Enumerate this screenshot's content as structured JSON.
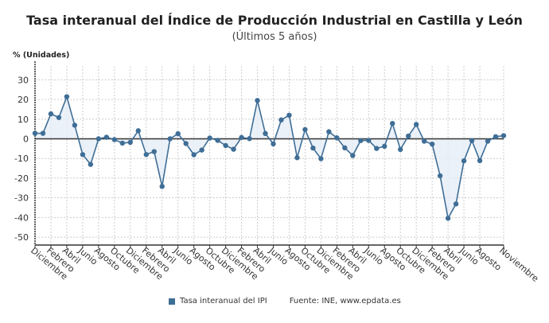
{
  "title": "Tasa interanual del Índice de Producción Industrial en Castilla y León",
  "subtitle": "(Últimos 5 años)",
  "legend_label": "Tasa interanual del IPI",
  "source": "Fuente: INE, www.epdata.es",
  "chart_data": {
    "type": "line",
    "title": "Tasa interanual del Índice de Producción Industrial en Castilla y León",
    "subtitle": "(Últimos 5 años)",
    "ylabel": "% (Unidades)",
    "xlabel": "",
    "ylim": [
      -54,
      37
    ],
    "yticks": [
      30,
      20,
      10,
      0,
      -10,
      -20,
      -30,
      -40,
      -50
    ],
    "grid": true,
    "legend": "bottom",
    "area_fill_to_zero": true,
    "colors": {
      "line": "#3f6e96",
      "fill": "#e6eef6",
      "zero": "#333333",
      "grid": "#cccccc"
    },
    "x_tick_labels": [
      {
        "index": 0,
        "label": "Diciembre"
      },
      {
        "index": 2,
        "label": "Febrero"
      },
      {
        "index": 4,
        "label": "Abril"
      },
      {
        "index": 6,
        "label": "Junio"
      },
      {
        "index": 8,
        "label": "Agosto"
      },
      {
        "index": 10,
        "label": "Octubre"
      },
      {
        "index": 12,
        "label": "Diciembre"
      },
      {
        "index": 14,
        "label": "Febrero"
      },
      {
        "index": 16,
        "label": "Abril"
      },
      {
        "index": 18,
        "label": "Junio"
      },
      {
        "index": 20,
        "label": "Agosto"
      },
      {
        "index": 22,
        "label": "Octubre"
      },
      {
        "index": 24,
        "label": "Diciembre"
      },
      {
        "index": 26,
        "label": "Febrero"
      },
      {
        "index": 28,
        "label": "Abril"
      },
      {
        "index": 30,
        "label": "Junio"
      },
      {
        "index": 32,
        "label": "Agosto"
      },
      {
        "index": 34,
        "label": "Octubre"
      },
      {
        "index": 36,
        "label": "Diciembre"
      },
      {
        "index": 38,
        "label": "Febrero"
      },
      {
        "index": 40,
        "label": "Abril"
      },
      {
        "index": 42,
        "label": "Junio"
      },
      {
        "index": 44,
        "label": "Agosto"
      },
      {
        "index": 46,
        "label": "Octubre"
      },
      {
        "index": 48,
        "label": "Diciembre"
      },
      {
        "index": 50,
        "label": "Febrero"
      },
      {
        "index": 52,
        "label": "Abril"
      },
      {
        "index": 54,
        "label": "Junio"
      },
      {
        "index": 56,
        "label": "Agosto"
      },
      {
        "index": 59,
        "label": "Noviembre"
      }
    ],
    "series": [
      {
        "name": "Tasa interanual del IPI",
        "values": [
          2.8,
          2.8,
          12.7,
          10.8,
          21.4,
          6.9,
          -8.0,
          -13.0,
          0.0,
          0.8,
          -0.4,
          -2.2,
          -1.8,
          4.1,
          -8.0,
          -6.5,
          -24.2,
          0.0,
          2.6,
          -2.4,
          -8.1,
          -5.7,
          0.4,
          -0.8,
          -3.4,
          -5.3,
          0.7,
          0.1,
          19.5,
          2.7,
          -2.6,
          9.6,
          12.0,
          -9.6,
          4.7,
          -4.7,
          -10.1,
          3.6,
          0.5,
          -4.6,
          -8.5,
          -0.9,
          -0.8,
          -4.9,
          -3.8,
          7.8,
          -5.4,
          1.4,
          7.3,
          -1.2,
          -2.7,
          -18.8,
          -40.4,
          -33.1,
          -11.2,
          -0.9,
          -11.1,
          -1.2,
          1.1,
          1.6
        ]
      }
    ]
  }
}
